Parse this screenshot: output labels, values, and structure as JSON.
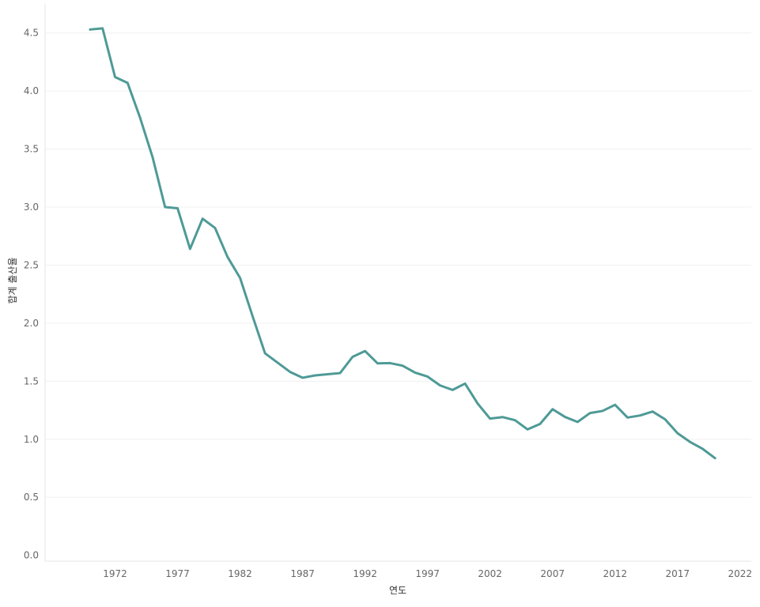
{
  "chart_data": {
    "type": "line",
    "xlabel": "연도",
    "ylabel": "합계 출산율",
    "xlim": [
      1966.4,
      2022.9
    ],
    "ylim": [
      -0.05,
      4.75
    ],
    "x_ticks": [
      1972,
      1977,
      1982,
      1987,
      1992,
      1997,
      2002,
      2007,
      2012,
      2017,
      2022
    ],
    "y_ticks": [
      0.0,
      0.5,
      1.0,
      1.5,
      2.0,
      2.5,
      3.0,
      3.5,
      4.0,
      4.5
    ],
    "grid": true,
    "colors": {
      "line": "#4e9a96"
    },
    "x": [
      1970,
      1971,
      1972,
      1973,
      1974,
      1975,
      1976,
      1977,
      1978,
      1979,
      1980,
      1981,
      1982,
      1983,
      1984,
      1985,
      1986,
      1987,
      1988,
      1989,
      1990,
      1991,
      1992,
      1993,
      1994,
      1995,
      1996,
      1997,
      1998,
      1999,
      2000,
      2001,
      2002,
      2003,
      2004,
      2005,
      2006,
      2007,
      2008,
      2009,
      2010,
      2011,
      2012,
      2013,
      2014,
      2015,
      2016,
      2017,
      2018,
      2019,
      2020
    ],
    "series": [
      {
        "values": [
          4.53,
          4.54,
          4.12,
          4.07,
          3.77,
          3.43,
          3.0,
          2.99,
          2.64,
          2.9,
          2.82,
          2.57,
          2.39,
          2.06,
          1.74,
          1.66,
          1.58,
          1.53,
          1.55,
          1.56,
          1.57,
          1.71,
          1.76,
          1.654,
          1.656,
          1.634,
          1.574,
          1.54,
          1.464,
          1.425,
          1.48,
          1.309,
          1.178,
          1.191,
          1.164,
          1.085,
          1.132,
          1.259,
          1.192,
          1.149,
          1.226,
          1.244,
          1.297,
          1.187,
          1.205,
          1.239,
          1.172,
          1.052,
          0.977,
          0.918,
          0.837
        ]
      }
    ]
  }
}
